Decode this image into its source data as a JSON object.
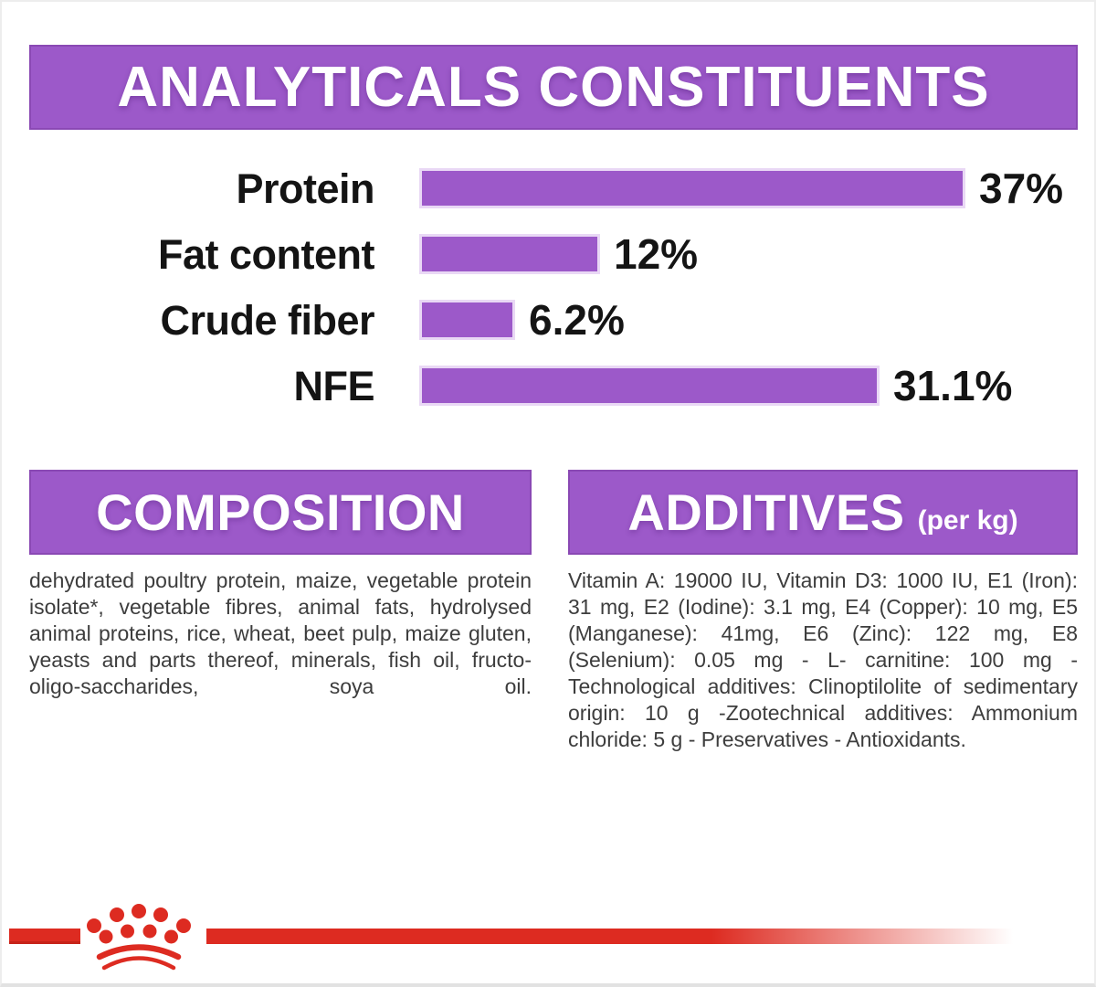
{
  "page": {
    "title": "ANALYTICALS CONSTITUENTS"
  },
  "chart_data": {
    "type": "bar",
    "orientation": "horizontal",
    "title": "ANALYTICALS CONSTITUENTS",
    "categories": [
      "Protein",
      "Fat content",
      "Crude fiber",
      "NFE"
    ],
    "values": [
      37,
      12,
      6.2,
      31.1
    ],
    "value_labels": [
      "37%",
      "12%",
      "6.2%",
      "31.1%"
    ],
    "unit": "%",
    "xlim": [
      0,
      40
    ],
    "grid": false,
    "legend": false,
    "bar_color": "#9c59c9",
    "value_label_position": "right-of-bar"
  },
  "composition": {
    "heading": "COMPOSITION",
    "body": "dehydrated poultry protein, maize, vegetable protein isolate*, vegetable fibres, animal fats, hydrolysed animal proteins, rice, wheat, beet pulp, maize gluten, yeasts and parts thereof, minerals, fish oil, fructo-oligo-saccharides, soya oil."
  },
  "additives": {
    "heading": "ADDITIVES",
    "heading_suffix": "(per kg)",
    "body": "Vitamin A: 19000 IU, Vitamin D3: 1000 IU, E1 (Iron): 31 mg, E2 (Iodine): 3.1 mg, E4 (Copper): 10 mg, E5 (Manganese): 41mg, E6 (Zinc): 122 mg, E8 (Selenium): 0.05 mg - L- carnitine: 100 mg - Technological additives: Clinoptilolite of sedimentary origin: 10 g -Zootechnical additives: Ammonium chloride: 5 g - Preservatives - Antioxidants."
  },
  "footer": {
    "logo": "royal-canin-crown"
  },
  "colors": {
    "purple": "#9c59c9",
    "purple_border": "#8a49b4",
    "red": "#dd2b21",
    "heading_text": "#ffffff",
    "label_text": "#141414",
    "body_text": "#3d3d3d"
  }
}
